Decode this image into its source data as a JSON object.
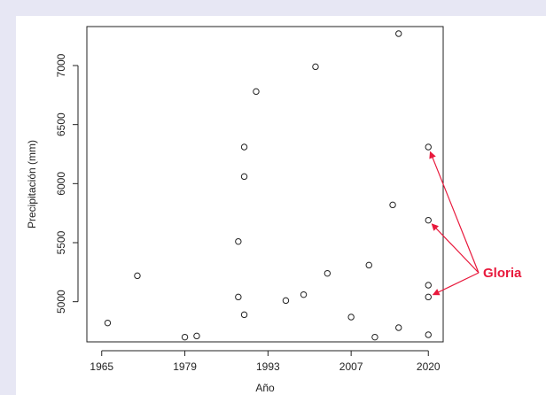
{
  "chart_data": {
    "type": "scatter",
    "title": "",
    "xlabel": "Año",
    "ylabel": "Precipitación (mm)",
    "xlim": [
      1962.5,
      2022.5
    ],
    "ylim": [
      4660,
      7330
    ],
    "x_ticks": [
      1965,
      1979,
      1993,
      2007,
      2020
    ],
    "y_ticks": [
      5000,
      5500,
      6000,
      6500,
      7000
    ],
    "grid": false,
    "series": [
      {
        "points": [
          {
            "x": 1966,
            "y": 4820
          },
          {
            "x": 1971,
            "y": 5220
          },
          {
            "x": 1979,
            "y": 4700
          },
          {
            "x": 1981,
            "y": 4710
          },
          {
            "x": 1988,
            "y": 5510
          },
          {
            "x": 1988,
            "y": 5040
          },
          {
            "x": 1989,
            "y": 6310
          },
          {
            "x": 1989,
            "y": 6060
          },
          {
            "x": 1989,
            "y": 4890
          },
          {
            "x": 1991,
            "y": 6780
          },
          {
            "x": 1996,
            "y": 5010
          },
          {
            "x": 1999,
            "y": 5060
          },
          {
            "x": 2001,
            "y": 6990
          },
          {
            "x": 2003,
            "y": 5240
          },
          {
            "x": 2007,
            "y": 4870
          },
          {
            "x": 2010,
            "y": 5310
          },
          {
            "x": 2011,
            "y": 4700
          },
          {
            "x": 2014,
            "y": 5820
          },
          {
            "x": 2015,
            "y": 4780
          },
          {
            "x": 2015,
            "y": 7270
          },
          {
            "x": 2020,
            "y": 6310
          },
          {
            "x": 2020,
            "y": 5690
          },
          {
            "x": 2020,
            "y": 5140
          },
          {
            "x": 2020,
            "y": 5040
          },
          {
            "x": 2020,
            "y": 4720
          }
        ]
      }
    ],
    "annotation": {
      "text": "Gloria",
      "color": "#e8193c",
      "targets": [
        {
          "x": 2020,
          "y": 6310
        },
        {
          "x": 2020,
          "y": 5690
        },
        {
          "x": 2020,
          "y": 5040
        }
      ]
    }
  }
}
